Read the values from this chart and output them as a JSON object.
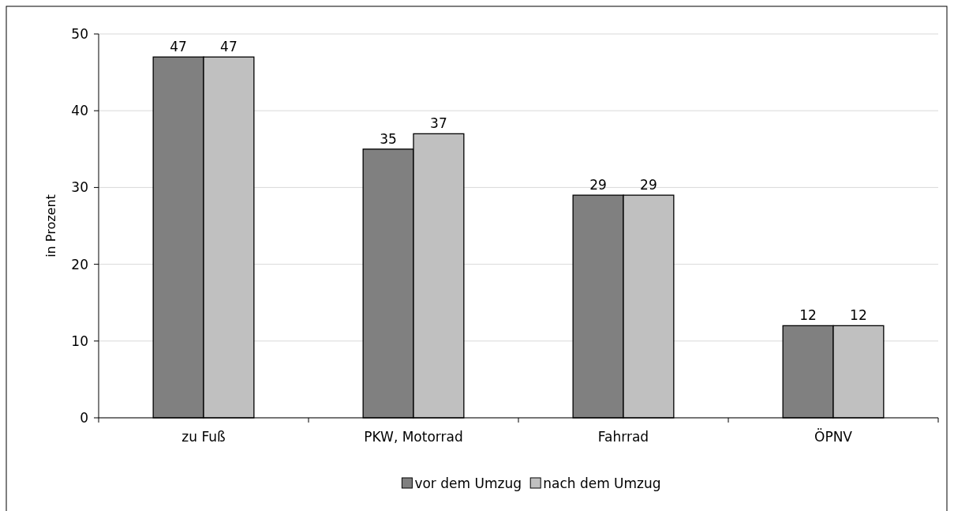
{
  "chart_data": {
    "type": "bar",
    "ylabel": "in Prozent",
    "categories": [
      "zu Fuß",
      "PKW, Motorrad",
      "Fahrrad",
      "ÖPNV"
    ],
    "series": [
      {
        "name": "vor dem Umzug",
        "color": "#808080",
        "values": [
          47,
          35,
          29,
          12
        ]
      },
      {
        "name": "nach dem Umzug",
        "color": "#c0c0c0",
        "values": [
          47,
          37,
          29,
          12
        ]
      }
    ],
    "ylim": [
      0,
      50
    ],
    "yticks": [
      0,
      10,
      20,
      30,
      40,
      50
    ],
    "grid": "y",
    "legend": "bottom",
    "data_labels": true
  }
}
